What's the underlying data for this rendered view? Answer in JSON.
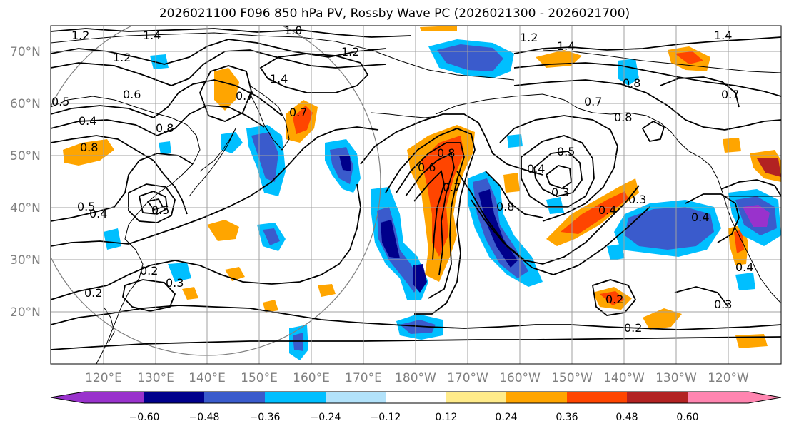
{
  "title": "2026021100 F096 850 hPa PV, Rossby Wave PC (2026021300 - 2026021700)",
  "lat_labels": [
    "70°N",
    "60°N",
    "50°N",
    "40°N",
    "30°N",
    "20°N"
  ],
  "lon_labels": [
    "120°E",
    "130°E",
    "140°E",
    "150°E",
    "160°E",
    "170°E",
    "180°W",
    "170°W",
    "160°W",
    "150°W",
    "140°W",
    "130°W",
    "120°W"
  ],
  "colorbar": {
    "tick_labels": [
      "−0.60",
      "−0.48",
      "−0.36",
      "−0.24",
      "−0.12",
      "0.12",
      "0.24",
      "0.36",
      "0.48",
      "0.60"
    ],
    "bins": [
      {
        "color": "#9932CC"
      },
      {
        "color": "#00008B"
      },
      {
        "color": "#3A5BCC"
      },
      {
        "color": "#00BFFF"
      },
      {
        "color": "#B2E2FA"
      },
      {
        "color": "#FFFFFF"
      },
      {
        "color": "#FFEB8A"
      },
      {
        "color": "#FFA500"
      },
      {
        "color": "#FF4500"
      },
      {
        "color": "#B22222"
      },
      {
        "color": "#FF85B0"
      }
    ]
  },
  "contour_labels": [
    "1.2",
    "1.4",
    "1.0",
    "1.2",
    "1.2",
    "1.4",
    "1.4",
    "1.4",
    "1.2",
    "0.5",
    "0.4",
    "0.6",
    "0.8",
    "0.7",
    "0.8",
    "0.7",
    "0.8",
    "0.8",
    "0.7",
    "0.7",
    "0.5",
    "0.4",
    "0.8",
    "0.6",
    "0.7",
    "0.5",
    "0.8",
    "0.4",
    "0.5",
    "0.3",
    "0.3",
    "0.4",
    "0.2",
    "0.3",
    "0.2",
    "0.3",
    "0.2",
    "0.2",
    "0.4",
    "0.4"
  ],
  "colors": {
    "land_line": "#000000",
    "grid": "#a0a0a0",
    "contour": "#000000"
  }
}
